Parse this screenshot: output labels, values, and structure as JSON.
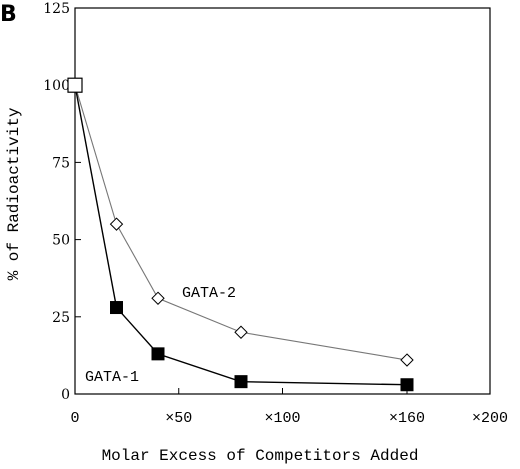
{
  "panel_label": "B",
  "chart_data": {
    "type": "line",
    "title": "",
    "xlabel": "Molar Excess of Competitors Added",
    "ylabel": "% of Radioactivity",
    "xlim": [
      0,
      200
    ],
    "ylim": [
      0,
      125
    ],
    "x_ticks": [
      {
        "value": 0,
        "label": "0"
      },
      {
        "value": 50,
        "label": "×50"
      },
      {
        "value": 100,
        "label": "×100"
      },
      {
        "value": 160,
        "label": "×160"
      },
      {
        "value": 200,
        "label": "×200"
      }
    ],
    "y_ticks": [
      {
        "value": 0,
        "label": "0"
      },
      {
        "value": 25,
        "label": "25"
      },
      {
        "value": 50,
        "label": "50"
      },
      {
        "value": 75,
        "label": "75"
      },
      {
        "value": 100,
        "label": "100"
      },
      {
        "value": 125,
        "label": "125"
      }
    ],
    "grid": false,
    "legend": "inline labels",
    "start_point": {
      "x": 0,
      "y": 100,
      "marker": "open-square"
    },
    "series": [
      {
        "name": "GATA-2",
        "marker": "open-diamond",
        "line_color": "#777777",
        "x": [
          0,
          20,
          40,
          80,
          160
        ],
        "y": [
          100,
          55,
          31,
          20,
          11
        ]
      },
      {
        "name": "GATA-1",
        "marker": "filled-square",
        "line_color": "#000000",
        "x": [
          0,
          20,
          40,
          80,
          160
        ],
        "y": [
          100,
          28,
          13,
          4,
          3
        ]
      }
    ]
  }
}
